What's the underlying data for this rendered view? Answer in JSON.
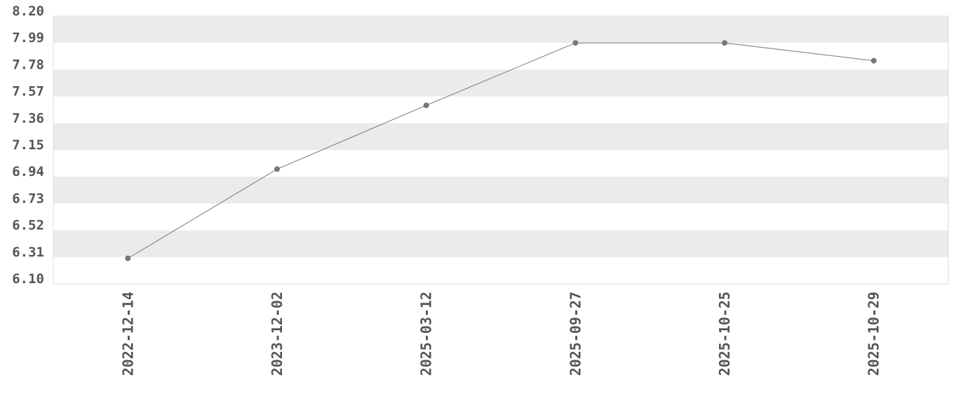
{
  "chart_data": {
    "type": "line",
    "title": "",
    "xlabel": "",
    "ylabel": "",
    "categories": [
      "2022-12-14",
      "2023-12-02",
      "2025-03-12",
      "2025-09-27",
      "2025-10-25",
      "2025-10-29"
    ],
    "values": [
      6.3,
      7.0,
      7.5,
      7.99,
      7.99,
      7.85
    ],
    "ylim": [
      6.1,
      8.2
    ],
    "yticks": [
      "8.20",
      "7.99",
      "7.78",
      "7.57",
      "7.36",
      "7.15",
      "6.94",
      "6.73",
      "6.52",
      "6.31",
      "6.10"
    ],
    "grid": "alternating horizontal bands",
    "legend": "none",
    "colors": {
      "line": "#777777",
      "marker": "#777777",
      "band": "#ebebeb",
      "text": "#555555",
      "border": "#dddddd"
    }
  }
}
